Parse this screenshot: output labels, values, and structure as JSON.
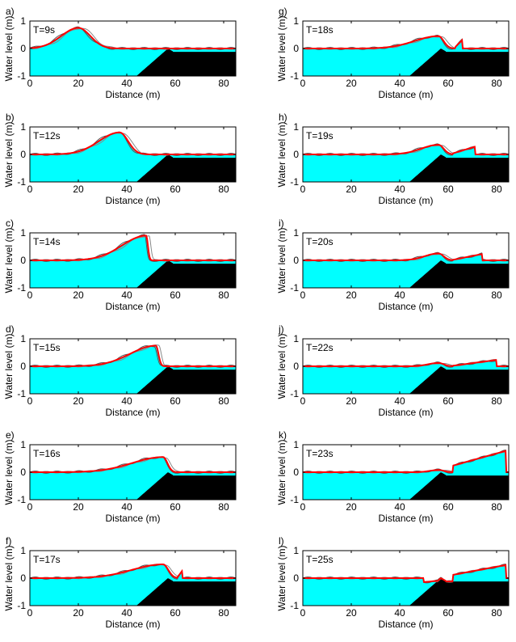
{
  "colors": {
    "water": "#00ffff",
    "bathymetry": "#000000",
    "model": "#ff0000",
    "measured_a": "#555555",
    "measured_b": "#888888"
  },
  "chart_data": [
    {
      "type": "area",
      "panel": "a)",
      "time": "T=9s",
      "xlabel": "Distance (m)",
      "ylabel": "Water level (m)",
      "xlim": [
        0,
        85
      ],
      "ylim": [
        -1,
        1
      ],
      "xticks": [
        0,
        20,
        40,
        60,
        80
      ],
      "yticks": [
        -1,
        0,
        1
      ],
      "crest_x": 20,
      "crest_h": 0.75,
      "width_back": 10,
      "width_front": 7,
      "shelf_level": 0.0
    },
    {
      "type": "area",
      "panel": "b)",
      "time": "T=12s",
      "xlabel": "Distance (m)",
      "ylabel": "Water level (m)",
      "xlim": [
        0,
        85
      ],
      "ylim": [
        -1,
        1
      ],
      "xticks": [
        0,
        20,
        40,
        60,
        80
      ],
      "yticks": [
        -1,
        0,
        1
      ],
      "crest_x": 37,
      "crest_h": 0.8,
      "width_back": 12,
      "width_front": 5,
      "shelf_level": 0.0
    },
    {
      "type": "area",
      "panel": "c)",
      "time": "T=14s",
      "xlabel": "Distance (m)",
      "ylabel": "Water level (m)",
      "xlim": [
        0,
        85
      ],
      "ylim": [
        -1,
        1
      ],
      "xticks": [
        0,
        20,
        40,
        60,
        80
      ],
      "yticks": [
        -1,
        0,
        1
      ],
      "crest_x": 48,
      "crest_h": 0.9,
      "width_back": 14,
      "width_front": 1,
      "shelf_level": 0.0
    },
    {
      "type": "area",
      "panel": "d)",
      "time": "T=15s",
      "xlabel": "Distance (m)",
      "ylabel": "Water level (m)",
      "xlim": [
        0,
        85
      ],
      "ylim": [
        -1,
        1
      ],
      "xticks": [
        0,
        20,
        40,
        60,
        80
      ],
      "yticks": [
        -1,
        0,
        1
      ],
      "crest_x": 52,
      "crest_h": 0.75,
      "width_back": 15,
      "width_front": 1.5,
      "shelf_level": 0.0
    },
    {
      "type": "area",
      "panel": "e)",
      "time": "T=16s",
      "xlabel": "Distance (m)",
      "ylabel": "Water level (m)",
      "xlim": [
        0,
        85
      ],
      "ylim": [
        -1,
        1
      ],
      "xticks": [
        0,
        20,
        40,
        60,
        80
      ],
      "yticks": [
        -1,
        0,
        1
      ],
      "crest_x": 55,
      "crest_h": 0.55,
      "width_back": 18,
      "width_front": 2.5,
      "shelf_level": 0.0
    },
    {
      "type": "area",
      "panel": "f)",
      "time": "T=17s",
      "xlabel": "Distance (m)",
      "ylabel": "Water level (m)",
      "xlim": [
        0,
        85
      ],
      "ylim": [
        -1,
        1
      ],
      "xticks": [
        0,
        20,
        40,
        60,
        80
      ],
      "yticks": [
        -1,
        0,
        1
      ],
      "crest_x": 55,
      "crest_h": 0.5,
      "width_back": 18,
      "width_front": 3,
      "bore_start": 61,
      "bore_end": 63,
      "bore_h": 0.4,
      "shelf_level": 0.0
    },
    {
      "type": "area",
      "panel": "g)",
      "time": "T=18s",
      "xlabel": "Distance (m)",
      "ylabel": "Water level (m)",
      "xlim": [
        0,
        85
      ],
      "ylim": [
        -1,
        1
      ],
      "xticks": [
        0,
        20,
        40,
        60,
        80
      ],
      "yticks": [
        -1,
        0,
        1
      ],
      "crest_x": 56,
      "crest_h": 0.45,
      "width_back": 14,
      "width_front": 3,
      "bore_start": 63,
      "bore_end": 66,
      "bore_h": 0.45,
      "shelf_level": 0.0
    },
    {
      "type": "area",
      "panel": "h)",
      "time": "T=19s",
      "xlabel": "Distance (m)",
      "ylabel": "Water level (m)",
      "xlim": [
        0,
        85
      ],
      "ylim": [
        -1,
        1
      ],
      "xticks": [
        0,
        20,
        40,
        60,
        80
      ],
      "yticks": [
        -1,
        0,
        1
      ],
      "crest_x": 56,
      "crest_h": 0.35,
      "width_back": 10,
      "width_front": 3,
      "bore_start": 62,
      "bore_end": 71,
      "bore_h": 0.4,
      "shelf_level": 0.0
    },
    {
      "type": "area",
      "panel": "i)",
      "time": "T=20s",
      "xlabel": "Distance (m)",
      "ylabel": "Water level (m)",
      "xlim": [
        0,
        85
      ],
      "ylim": [
        -1,
        1
      ],
      "xticks": [
        0,
        20,
        40,
        60,
        80
      ],
      "yticks": [
        -1,
        0,
        1
      ],
      "crest_x": 56,
      "crest_h": 0.25,
      "width_back": 8,
      "width_front": 3,
      "bore_start": 62,
      "bore_end": 74,
      "bore_h": 0.35,
      "shelf_level": 0.0
    },
    {
      "type": "area",
      "panel": "j)",
      "time": "T=22s",
      "xlabel": "Distance (m)",
      "ylabel": "Water level (m)",
      "xlim": [
        0,
        85
      ],
      "ylim": [
        -1,
        1
      ],
      "xticks": [
        0,
        20,
        40,
        60,
        80
      ],
      "yticks": [
        -1,
        0,
        1
      ],
      "crest_x": 56,
      "crest_h": 0.12,
      "width_back": 6,
      "width_front": 3,
      "bore_start": 62,
      "bore_end": 80,
      "bore_h": 0.35,
      "shelf_level": 0.0
    },
    {
      "type": "area",
      "panel": "k)",
      "time": "T=23s",
      "xlabel": "Distance (m)",
      "ylabel": "Water level (m)",
      "xlim": [
        0,
        85
      ],
      "ylim": [
        -1,
        1
      ],
      "xticks": [
        0,
        20,
        40,
        60,
        80
      ],
      "yticks": [
        -1,
        0,
        1
      ],
      "crest_x": 56,
      "crest_h": 0.08,
      "width_back": 5,
      "width_front": 3,
      "bore_start": 62,
      "bore_end": 84,
      "bore_h": 0.9,
      "shelf_level": 0.0
    },
    {
      "type": "area",
      "panel": "l)",
      "time": "T=25s",
      "xlabel": "Distance (m)",
      "ylabel": "Water level (m)",
      "xlim": [
        0,
        85
      ],
      "ylim": [
        -1,
        1
      ],
      "xticks": [
        0,
        20,
        40,
        60,
        80
      ],
      "yticks": [
        -1,
        0,
        1
      ],
      "crest_x": 56,
      "crest_h": 0.05,
      "width_back": 4,
      "width_front": 3,
      "trough": -0.15,
      "bore_start": 62,
      "bore_end": 84,
      "bore_h": 0.6,
      "shelf_level": 0.0
    }
  ]
}
